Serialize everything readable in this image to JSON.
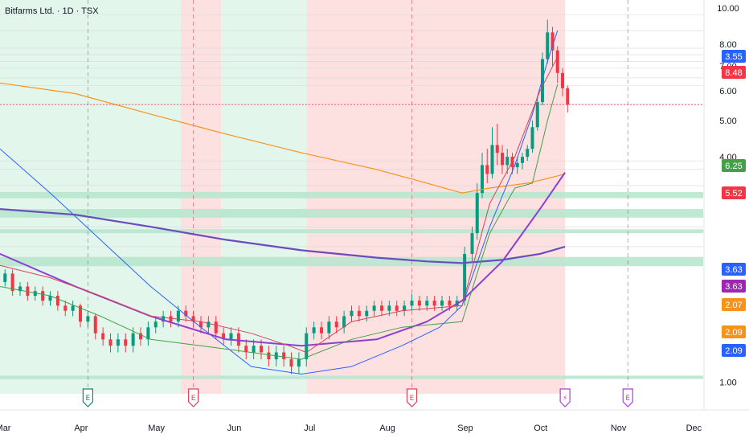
{
  "header": {
    "title": "Bitfarms Ltd. · 1D · TSX"
  },
  "chart_data": {
    "type": "candlestick",
    "title": "Bitfarms Ltd. · 1D · TSX",
    "y_scale": "log",
    "ylim": [
      0.93,
      10.5
    ],
    "y_ticks": [
      "1.00",
      "4.00",
      "5.00",
      "6.00",
      "7.00",
      "8.00",
      "10.00"
    ],
    "y_tick_values": [
      1,
      4,
      5,
      6,
      7,
      8,
      10
    ],
    "x_ticks": [
      "Mar",
      "Apr",
      "May",
      "Jun",
      "Jul",
      "Aug",
      "Sep",
      "Oct",
      "Nov",
      "Dec"
    ],
    "x_tick_days": [
      0,
      31,
      61,
      92,
      122,
      153,
      184,
      214,
      245,
      275
    ],
    "bands": [
      {
        "from_day": 0,
        "to_day": 72,
        "color": "#e3f6ec"
      },
      {
        "from_day": 72,
        "to_day": 88,
        "color": "#fde0e0"
      },
      {
        "from_day": 88,
        "to_day": 122,
        "color": "#e3f6ec"
      },
      {
        "from_day": 122,
        "to_day": 225,
        "color": "#fde0e0"
      }
    ],
    "earnings_markers": [
      {
        "day": 35,
        "label": "E",
        "color": "#14857a"
      },
      {
        "day": 77,
        "label": "E",
        "color": "#d9435a"
      },
      {
        "day": 164,
        "label": "E",
        "color": "#d9435a"
      },
      {
        "day": 225,
        "label": "⚡",
        "color": "#b23cd6"
      },
      {
        "day": 250,
        "label": "E",
        "color": "#b23cd6"
      }
    ],
    "vlines": [
      35,
      77,
      164,
      250
    ],
    "price_badges": [
      {
        "value": 3.55,
        "label": "3.55",
        "color": "#2962ff"
      },
      {
        "value": 8.48,
        "label": "8.48",
        "color": "#f23645"
      },
      {
        "value": 6.25,
        "label": "6.25",
        "color": "#43a047"
      },
      {
        "value": 5.52,
        "label": "5.52",
        "color": "#f23645"
      },
      {
        "value": 3.63,
        "label": "3.63",
        "color": "#2962ff"
      },
      {
        "value": 3.63,
        "label": "3.63",
        "color": "#9c27b0"
      },
      {
        "value": 2.07,
        "label": "2.07",
        "color": "#f7931a"
      },
      {
        "value": 2.09,
        "label": "2.09",
        "color": "#f7931a"
      },
      {
        "value": 2.09,
        "label": "2.09",
        "color": "#2962ff"
      }
    ],
    "zones": [
      {
        "low": 3.1,
        "high": 3.22,
        "color": "#b5e5cd"
      },
      {
        "low": 2.75,
        "high": 2.9,
        "color": "#b5e5cd"
      },
      {
        "low": 2.5,
        "high": 2.56,
        "color": "#b5e5cd"
      },
      {
        "low": 2.04,
        "high": 2.16,
        "color": "#b5e5cd"
      },
      {
        "low": 1.02,
        "high": 1.04,
        "color": "#b5e5cd"
      }
    ],
    "series": [
      {
        "name": "",
        "color": "#f7931a",
        "width": 1.2,
        "points": [
          [
            0,
            6.3
          ],
          [
            30,
            5.9
          ],
          [
            60,
            5.2
          ],
          [
            90,
            4.6
          ],
          [
            120,
            4.1
          ],
          [
            150,
            3.7
          ],
          [
            170,
            3.4
          ],
          [
            184,
            3.2
          ],
          [
            195,
            3.3
          ],
          [
            210,
            3.4
          ],
          [
            218,
            3.5
          ],
          [
            225,
            3.6
          ]
        ]
      },
      {
        "name": "",
        "color": "#2962ff",
        "width": 1,
        "points": [
          [
            0,
            4.2
          ],
          [
            20,
            3.2
          ],
          [
            40,
            2.4
          ],
          [
            60,
            1.8
          ],
          [
            80,
            1.4
          ],
          [
            100,
            1.1
          ],
          [
            120,
            1.05
          ],
          [
            140,
            1.1
          ],
          [
            160,
            1.25
          ],
          [
            175,
            1.4
          ],
          [
            184,
            1.6
          ],
          [
            195,
            2.6
          ],
          [
            205,
            3.8
          ],
          [
            212,
            5.2
          ],
          [
            218,
            7.2
          ],
          [
            222,
            8.7
          ]
        ]
      },
      {
        "name": "",
        "color": "#6a4dbd",
        "width": 2.2,
        "points": [
          [
            0,
            2.9
          ],
          [
            30,
            2.8
          ],
          [
            60,
            2.6
          ],
          [
            90,
            2.4
          ],
          [
            120,
            2.25
          ],
          [
            150,
            2.15
          ],
          [
            170,
            2.1
          ],
          [
            184,
            2.08
          ],
          [
            200,
            2.12
          ],
          [
            215,
            2.2
          ],
          [
            225,
            2.3
          ]
        ]
      },
      {
        "name": "",
        "color": "#8e3fd0",
        "width": 2,
        "points": [
          [
            0,
            2.2
          ],
          [
            30,
            1.8
          ],
          [
            60,
            1.5
          ],
          [
            90,
            1.3
          ],
          [
            120,
            1.25
          ],
          [
            150,
            1.3
          ],
          [
            170,
            1.45
          ],
          [
            184,
            1.65
          ],
          [
            200,
            2.1
          ],
          [
            215,
            2.9
          ],
          [
            225,
            3.63
          ]
        ]
      },
      {
        "name": "",
        "color": "#d9435a",
        "width": 1,
        "points": [
          [
            0,
            2.05
          ],
          [
            20,
            1.9
          ],
          [
            40,
            1.7
          ],
          [
            60,
            1.5
          ],
          [
            80,
            1.45
          ],
          [
            100,
            1.35
          ],
          [
            115,
            1.25
          ],
          [
            122,
            1.2
          ],
          [
            140,
            1.45
          ],
          [
            160,
            1.55
          ],
          [
            184,
            1.6
          ],
          [
            195,
            3.0
          ],
          [
            205,
            4.0
          ],
          [
            215,
            6.0
          ],
          [
            222,
            7.4
          ]
        ]
      },
      {
        "name": "",
        "color": "#43a047",
        "width": 1,
        "points": [
          [
            0,
            1.8
          ],
          [
            20,
            1.7
          ],
          [
            40,
            1.5
          ],
          [
            60,
            1.3
          ],
          [
            80,
            1.25
          ],
          [
            100,
            1.2
          ],
          [
            120,
            1.15
          ],
          [
            140,
            1.3
          ],
          [
            160,
            1.4
          ],
          [
            184,
            1.45
          ],
          [
            195,
            2.5
          ],
          [
            205,
            3.3
          ],
          [
            212,
            3.4
          ],
          [
            218,
            5.0
          ],
          [
            222,
            6.25
          ]
        ]
      }
    ],
    "candles": [
      [
        2,
        1.85,
        1.95,
        2.0,
        1.8
      ],
      [
        5,
        1.95,
        1.75,
        2.0,
        1.7
      ],
      [
        8,
        1.75,
        1.8,
        1.85,
        1.7
      ],
      [
        11,
        1.8,
        1.7,
        1.85,
        1.65
      ],
      [
        14,
        1.7,
        1.75,
        1.8,
        1.65
      ],
      [
        17,
        1.75,
        1.65,
        1.8,
        1.6
      ],
      [
        20,
        1.65,
        1.7,
        1.75,
        1.6
      ],
      [
        23,
        1.7,
        1.6,
        1.75,
        1.55
      ],
      [
        26,
        1.6,
        1.55,
        1.65,
        1.5
      ],
      [
        29,
        1.55,
        1.6,
        1.65,
        1.5
      ],
      [
        32,
        1.6,
        1.45,
        1.62,
        1.4
      ],
      [
        35,
        1.45,
        1.5,
        1.55,
        1.4
      ],
      [
        38,
        1.5,
        1.35,
        1.52,
        1.3
      ],
      [
        41,
        1.35,
        1.3,
        1.4,
        1.25
      ],
      [
        44,
        1.3,
        1.25,
        1.35,
        1.2
      ],
      [
        47,
        1.25,
        1.3,
        1.35,
        1.2
      ],
      [
        50,
        1.3,
        1.25,
        1.35,
        1.2
      ],
      [
        53,
        1.25,
        1.35,
        1.4,
        1.2
      ],
      [
        56,
        1.35,
        1.3,
        1.4,
        1.25
      ],
      [
        59,
        1.3,
        1.4,
        1.45,
        1.25
      ],
      [
        62,
        1.4,
        1.45,
        1.5,
        1.35
      ],
      [
        65,
        1.45,
        1.5,
        1.55,
        1.4
      ],
      [
        68,
        1.5,
        1.45,
        1.55,
        1.4
      ],
      [
        71,
        1.45,
        1.55,
        1.6,
        1.4
      ],
      [
        74,
        1.55,
        1.5,
        1.6,
        1.45
      ],
      [
        77,
        1.5,
        1.45,
        1.55,
        1.4
      ],
      [
        80,
        1.45,
        1.4,
        1.5,
        1.35
      ],
      [
        83,
        1.4,
        1.45,
        1.5,
        1.35
      ],
      [
        86,
        1.45,
        1.35,
        1.5,
        1.3
      ],
      [
        89,
        1.35,
        1.3,
        1.4,
        1.25
      ],
      [
        92,
        1.3,
        1.35,
        1.4,
        1.25
      ],
      [
        95,
        1.35,
        1.25,
        1.4,
        1.2
      ],
      [
        98,
        1.25,
        1.2,
        1.3,
        1.15
      ],
      [
        101,
        1.2,
        1.25,
        1.3,
        1.15
      ],
      [
        104,
        1.25,
        1.2,
        1.3,
        1.15
      ],
      [
        107,
        1.2,
        1.15,
        1.25,
        1.1
      ],
      [
        110,
        1.15,
        1.2,
        1.25,
        1.1
      ],
      [
        113,
        1.2,
        1.15,
        1.25,
        1.1
      ],
      [
        116,
        1.15,
        1.1,
        1.2,
        1.05
      ],
      [
        119,
        1.1,
        1.15,
        1.2,
        1.05
      ],
      [
        122,
        1.15,
        1.35,
        1.4,
        1.1
      ],
      [
        125,
        1.35,
        1.4,
        1.45,
        1.3
      ],
      [
        128,
        1.4,
        1.35,
        1.45,
        1.3
      ],
      [
        131,
        1.35,
        1.45,
        1.5,
        1.3
      ],
      [
        134,
        1.45,
        1.4,
        1.5,
        1.35
      ],
      [
        137,
        1.4,
        1.5,
        1.55,
        1.35
      ],
      [
        140,
        1.5,
        1.55,
        1.6,
        1.45
      ],
      [
        143,
        1.55,
        1.5,
        1.6,
        1.45
      ],
      [
        146,
        1.5,
        1.55,
        1.6,
        1.45
      ],
      [
        149,
        1.55,
        1.6,
        1.65,
        1.5
      ],
      [
        152,
        1.6,
        1.55,
        1.65,
        1.5
      ],
      [
        155,
        1.55,
        1.6,
        1.65,
        1.5
      ],
      [
        158,
        1.6,
        1.55,
        1.65,
        1.5
      ],
      [
        161,
        1.55,
        1.6,
        1.65,
        1.5
      ],
      [
        164,
        1.6,
        1.65,
        1.72,
        1.55
      ],
      [
        167,
        1.65,
        1.6,
        1.7,
        1.55
      ],
      [
        170,
        1.6,
        1.65,
        1.7,
        1.55
      ],
      [
        173,
        1.65,
        1.6,
        1.7,
        1.55
      ],
      [
        176,
        1.6,
        1.65,
        1.7,
        1.55
      ],
      [
        179,
        1.65,
        1.6,
        1.7,
        1.55
      ],
      [
        182,
        1.6,
        1.65,
        1.7,
        1.55
      ],
      [
        185,
        1.65,
        2.2,
        2.3,
        1.6
      ],
      [
        188,
        2.2,
        2.5,
        2.6,
        2.1
      ],
      [
        190,
        2.5,
        3.2,
        3.4,
        2.4
      ],
      [
        192,
        3.2,
        3.8,
        4.1,
        3.1
      ],
      [
        194,
        3.8,
        3.6,
        4.2,
        3.4
      ],
      [
        196,
        3.6,
        4.3,
        4.8,
        3.5
      ],
      [
        198,
        4.3,
        4.1,
        4.9,
        3.8
      ],
      [
        200,
        4.1,
        3.8,
        4.3,
        3.6
      ],
      [
        202,
        3.8,
        4.0,
        4.2,
        3.6
      ],
      [
        204,
        4.0,
        3.75,
        4.1,
        3.6
      ],
      [
        206,
        3.75,
        3.85,
        4.0,
        3.6
      ],
      [
        208,
        3.85,
        4.0,
        4.1,
        3.7
      ],
      [
        210,
        4.0,
        4.2,
        4.3,
        3.9
      ],
      [
        212,
        4.2,
        4.8,
        5.0,
        4.1
      ],
      [
        214,
        4.8,
        5.6,
        5.8,
        4.7
      ],
      [
        216,
        5.6,
        7.3,
        7.6,
        5.5
      ],
      [
        218,
        7.3,
        8.6,
        9.3,
        7.1
      ],
      [
        220,
        8.6,
        7.7,
        8.9,
        7.0
      ],
      [
        222,
        7.7,
        6.7,
        7.9,
        6.3
      ],
      [
        224,
        6.7,
        6.1,
        6.9,
        5.8
      ],
      [
        226,
        6.1,
        5.52,
        6.2,
        5.25
      ]
    ]
  }
}
